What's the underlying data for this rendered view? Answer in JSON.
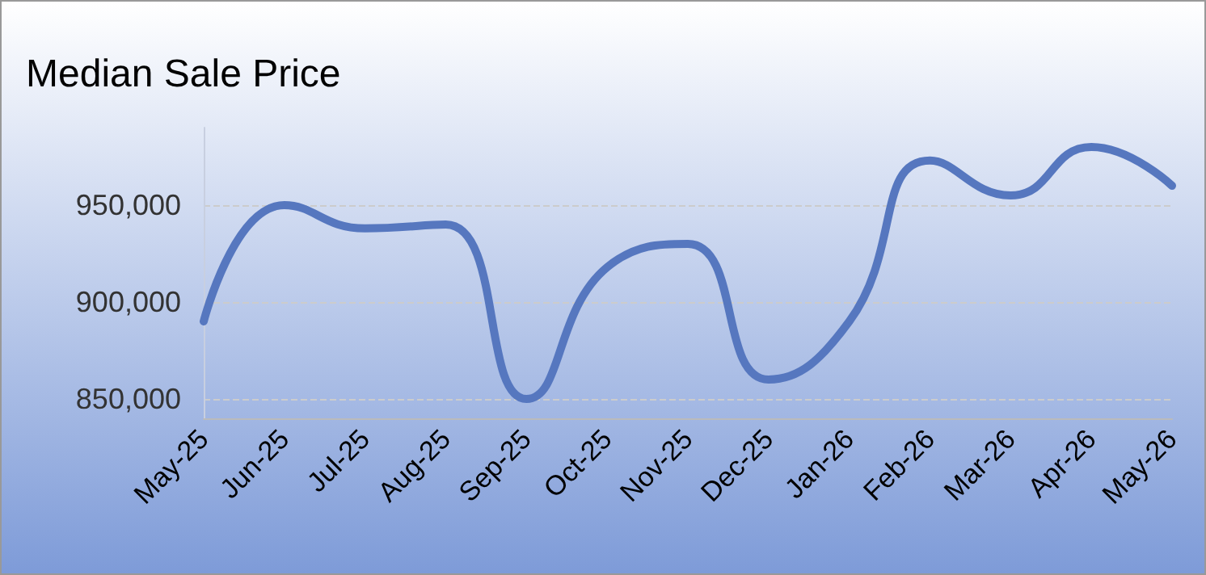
{
  "chart_data": {
    "type": "line",
    "title": "Median Sale Price",
    "categories": [
      "May-25",
      "Jun-25",
      "Jul-25",
      "Aug-25",
      "Sep-25",
      "Oct-25",
      "Nov-25",
      "Dec-25",
      "Jan-26",
      "Feb-26",
      "Mar-26",
      "Apr-26",
      "May-26"
    ],
    "series": [
      {
        "color": "#5677bf",
        "values": [
          890000,
          950000,
          938000,
          940000,
          850000,
          918000,
          930000,
          860000,
          890000,
          973000,
          955000,
          980000,
          960000
        ]
      }
    ],
    "ylim": [
      840000,
      990000
    ],
    "yticks": [
      {
        "value": 850000,
        "label": "850,000"
      },
      {
        "value": 900000,
        "label": "900,000"
      },
      {
        "value": 950000,
        "label": "950,000"
      }
    ],
    "grid": "y",
    "marker": "none",
    "line_style": "solid"
  }
}
